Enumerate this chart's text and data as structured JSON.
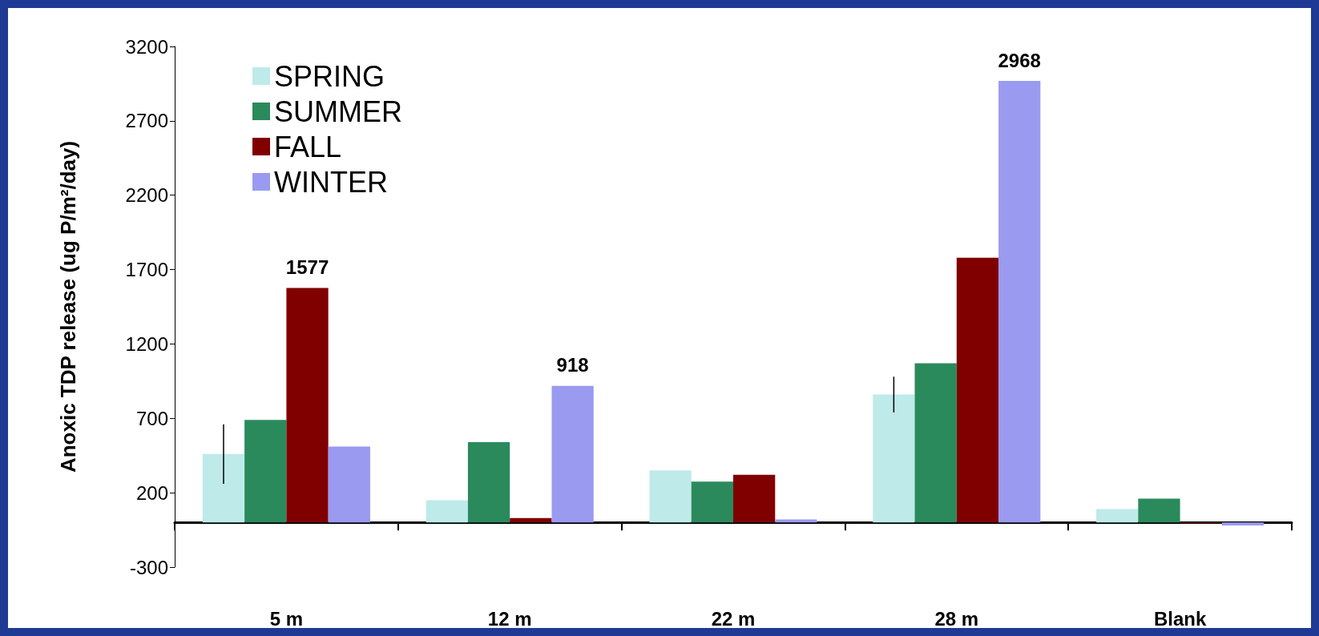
{
  "chart_data": {
    "type": "bar",
    "ylabel": "Anoxic TDP release (ug P/m²/day)",
    "categories": [
      "5 m",
      "12 m",
      "22 m",
      "28 m",
      "Blank"
    ],
    "series": [
      {
        "name": "SPRING",
        "color": "#bfeaea",
        "values": [
          460,
          150,
          350,
          860,
          90
        ],
        "errors": [
          200,
          null,
          null,
          120,
          null
        ]
      },
      {
        "name": "SUMMER",
        "color": "#2a8a5c",
        "values": [
          690,
          540,
          275,
          1070,
          160
        ],
        "errors": [
          null,
          null,
          null,
          null,
          null
        ]
      },
      {
        "name": "FALL",
        "color": "#800000",
        "values": [
          1577,
          30,
          320,
          1780,
          -5
        ],
        "value_labels": [
          "1577",
          null,
          null,
          null,
          null
        ]
      },
      {
        "name": "WINTER",
        "color": "#9a9af0",
        "values": [
          510,
          918,
          20,
          2968,
          -20
        ],
        "value_labels": [
          null,
          "918",
          null,
          "2968",
          null
        ]
      }
    ],
    "ylim": [
      -300,
      3200
    ],
    "yticks": [
      -300,
      200,
      700,
      1200,
      1700,
      2200,
      2700,
      3200
    ],
    "grid": false,
    "legend": "top left"
  }
}
